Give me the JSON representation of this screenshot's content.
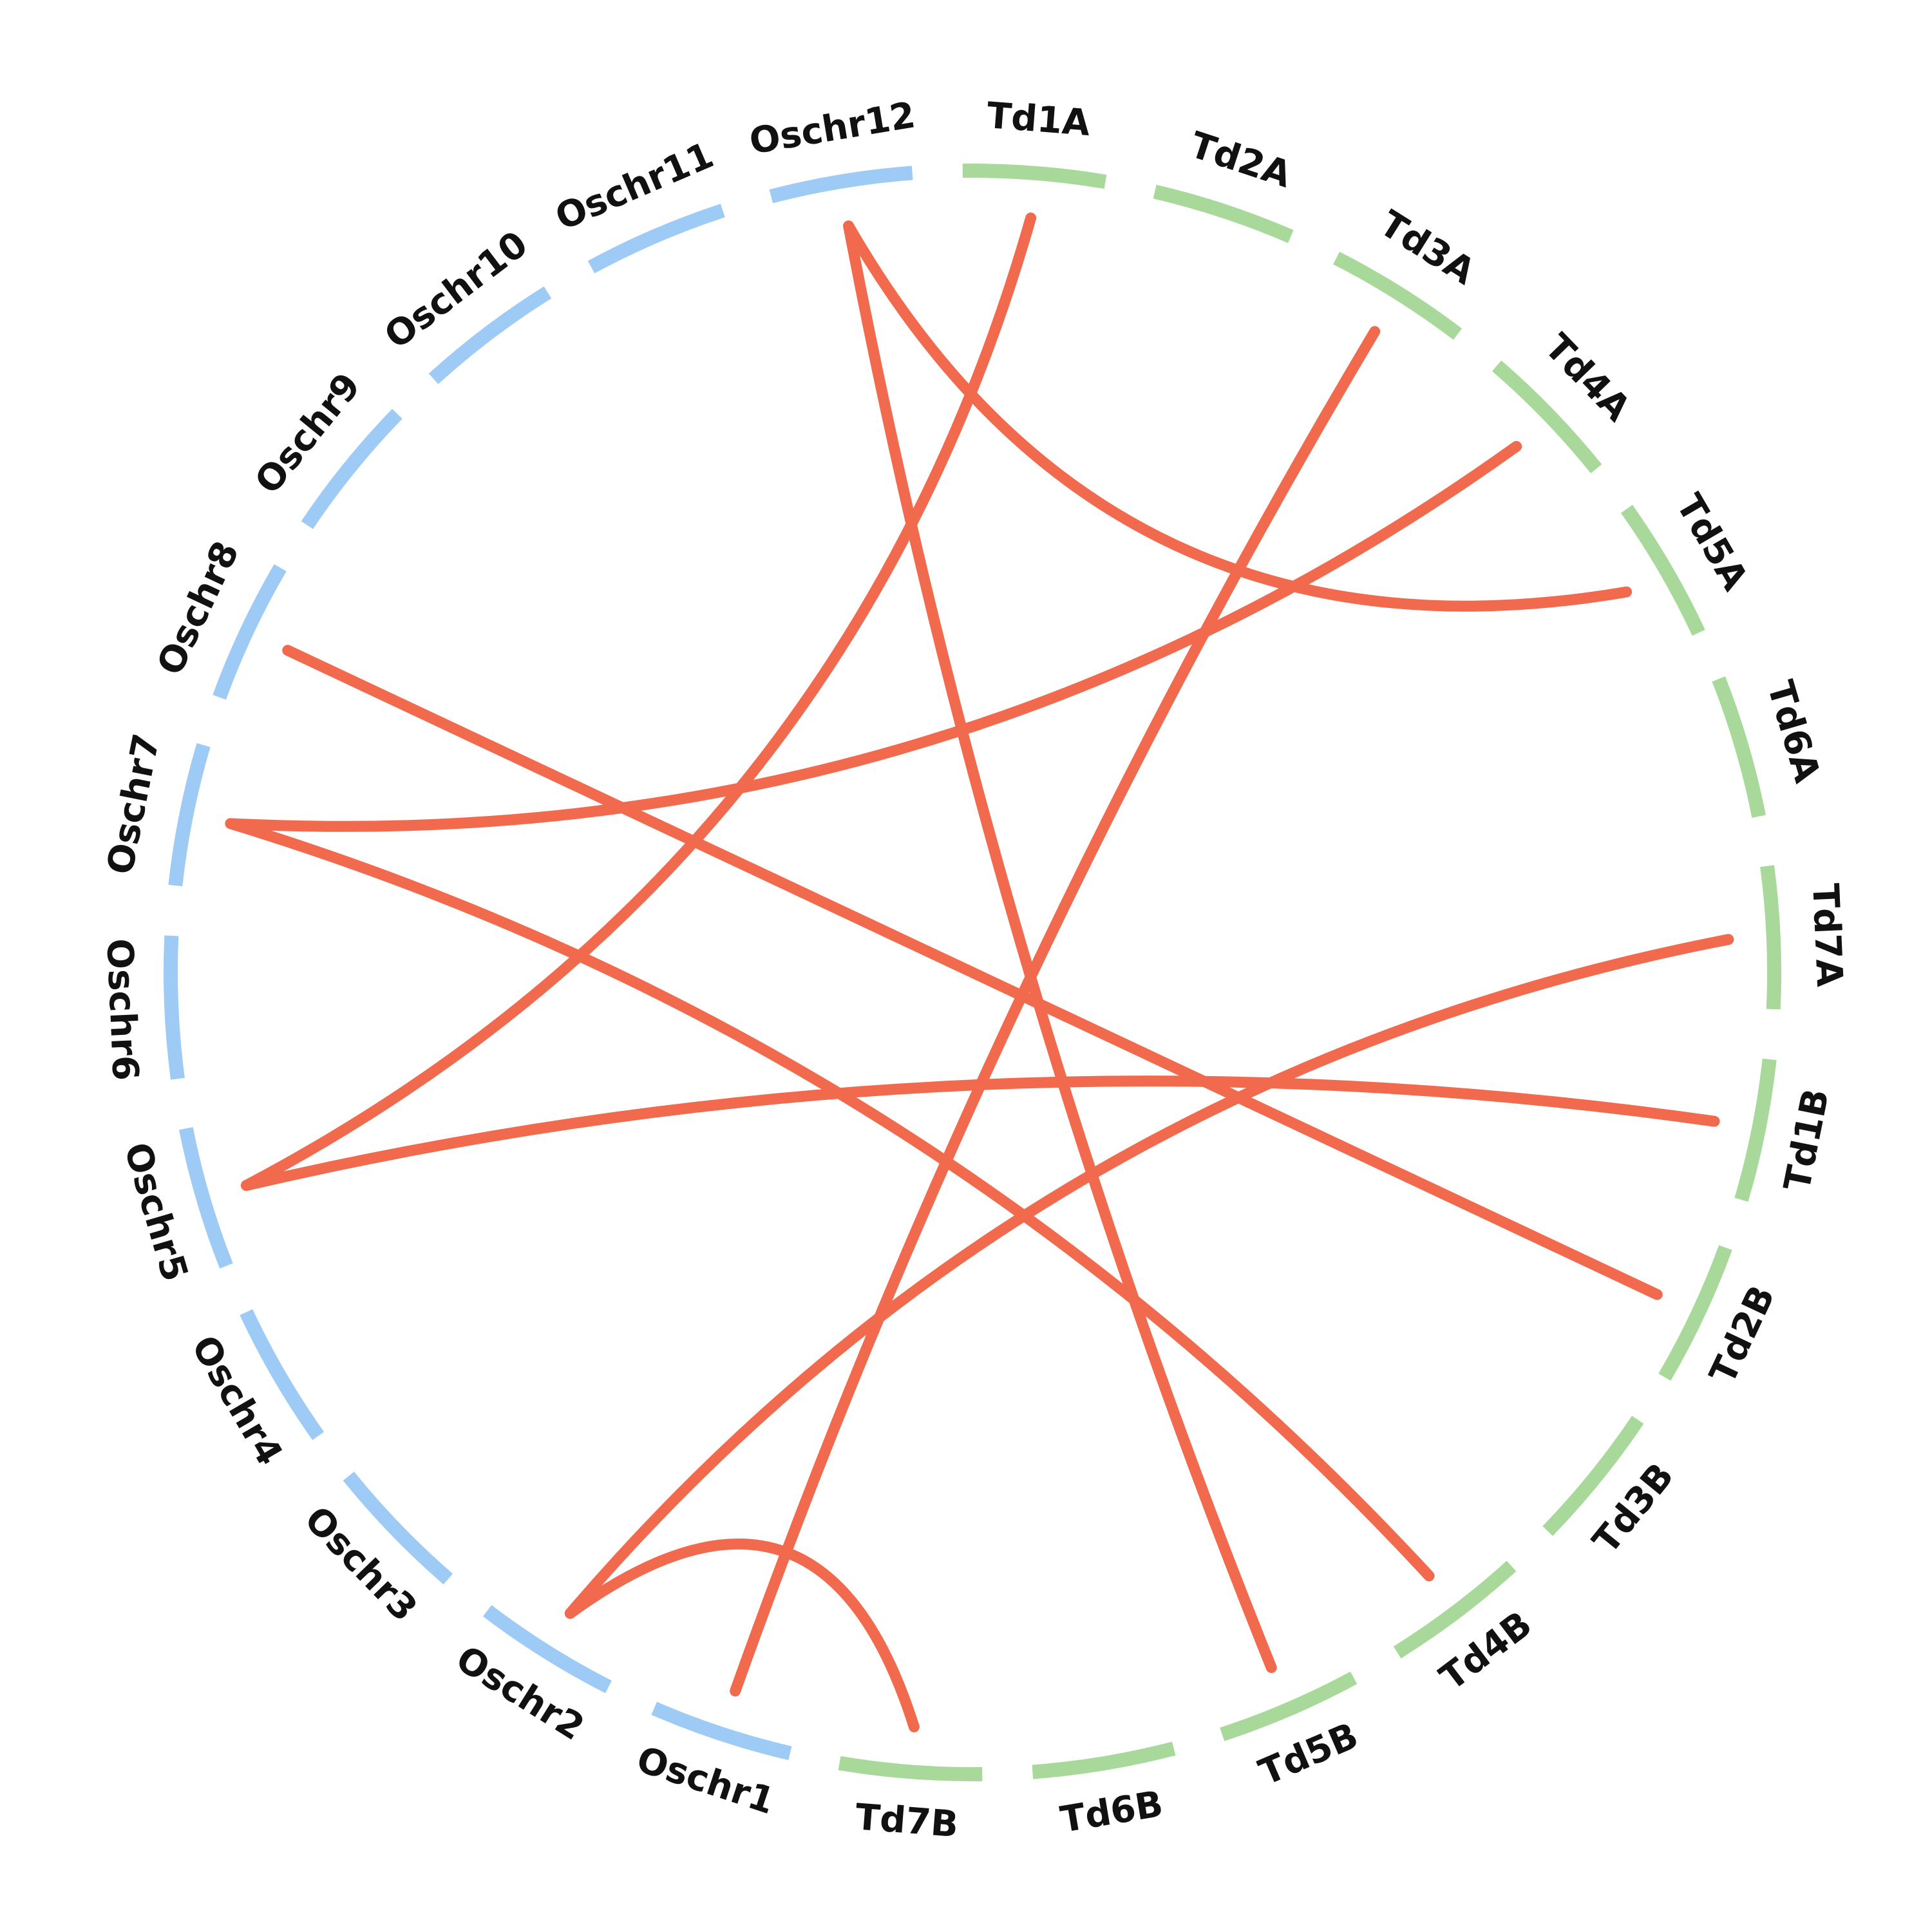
{
  "colors": {
    "oryza": "#9ecbf5",
    "wheat": "#a8d99a",
    "link": "#f26a4d",
    "label": "#111111"
  },
  "chromosomes": [
    {
      "label": "Td1A",
      "group": "wheat"
    },
    {
      "label": "Td2A",
      "group": "wheat"
    },
    {
      "label": "Td3A",
      "group": "wheat"
    },
    {
      "label": "Td4A",
      "group": "wheat"
    },
    {
      "label": "Td5A",
      "group": "wheat"
    },
    {
      "label": "Td6A",
      "group": "wheat"
    },
    {
      "label": "Td7A",
      "group": "wheat"
    },
    {
      "label": "Td1B",
      "group": "wheat"
    },
    {
      "label": "Td2B",
      "group": "wheat"
    },
    {
      "label": "Td3B",
      "group": "wheat"
    },
    {
      "label": "Td4B",
      "group": "wheat"
    },
    {
      "label": "Td5B",
      "group": "wheat"
    },
    {
      "label": "Td6B",
      "group": "wheat"
    },
    {
      "label": "Td7B",
      "group": "wheat"
    },
    {
      "label": "Oschr1",
      "group": "oryza"
    },
    {
      "label": "Oschr2",
      "group": "oryza"
    },
    {
      "label": "Oschr3",
      "group": "oryza"
    },
    {
      "label": "Oschr4",
      "group": "oryza"
    },
    {
      "label": "Oschr5",
      "group": "oryza"
    },
    {
      "label": "Oschr6",
      "group": "oryza"
    },
    {
      "label": "Oschr7",
      "group": "oryza"
    },
    {
      "label": "Oschr8",
      "group": "oryza"
    },
    {
      "label": "Oschr9",
      "group": "oryza"
    },
    {
      "label": "Oschr10",
      "group": "oryza"
    },
    {
      "label": "Oschr11",
      "group": "oryza"
    },
    {
      "label": "Oschr12",
      "group": "oryza"
    }
  ],
  "links": [
    {
      "from": "Oschr12",
      "to": "Td5B"
    },
    {
      "from": "Oschr12",
      "to": "Td5A"
    },
    {
      "from": "Td1A",
      "to": "Oschr5"
    },
    {
      "from": "Td3A",
      "to": "Oschr1"
    },
    {
      "from": "Td4A",
      "to": "Oschr7"
    },
    {
      "from": "Oschr8",
      "to": "Td2B"
    },
    {
      "from": "Oschr7",
      "to": "Td4B"
    },
    {
      "from": "Oschr5",
      "to": "Td1B"
    },
    {
      "from": "Oschr2",
      "to": "Td7A"
    },
    {
      "from": "Oschr2",
      "to": "Td7B"
    }
  ]
}
